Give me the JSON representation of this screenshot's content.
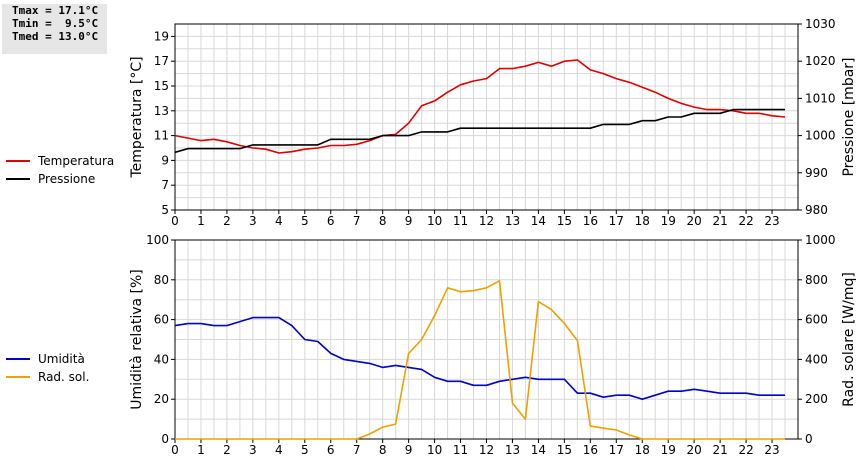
{
  "stats": {
    "tmax": "Tmax = 17.1°C",
    "tmin": "Tmin =  9.5°C",
    "tmed": "Tmed = 13.0°C"
  },
  "colors": {
    "temperatura": "#e00000",
    "pressione": "#000000",
    "umidita": "#0000c8",
    "radsol": "#f0a000",
    "grid": "#d8d8d8"
  },
  "chart_data": [
    {
      "type": "line",
      "xlabel": "",
      "ylabel": "Temperatura [°C]",
      "y2label": "Pressione [mbar]",
      "xlim": [
        0,
        24
      ],
      "ylim": [
        5,
        20
      ],
      "y2lim": [
        980,
        1030
      ],
      "xticks": [
        "0",
        "1",
        "2",
        "3",
        "4",
        "5",
        "6",
        "7",
        "8",
        "9",
        "10",
        "11",
        "12",
        "13",
        "14",
        "15",
        "16",
        "17",
        "18",
        "19",
        "20",
        "21",
        "22",
        "23"
      ],
      "yticks": [
        "5",
        "7",
        "9",
        "11",
        "13",
        "15",
        "17",
        "19"
      ],
      "y2ticks": [
        "980",
        "990",
        "1000",
        "1010",
        "1020",
        "1030"
      ],
      "grid": true,
      "legend": "left",
      "series": [
        {
          "name": "Temperatura",
          "axis": "left",
          "color_key": "temperatura",
          "x": [
            0,
            0.5,
            1,
            1.5,
            2,
            2.5,
            3,
            3.5,
            4,
            4.5,
            5,
            5.5,
            6,
            6.5,
            7,
            7.5,
            8,
            8.5,
            9,
            9.5,
            10,
            10.5,
            11,
            11.5,
            12,
            12.5,
            13,
            13.5,
            14,
            14.5,
            15,
            15.5,
            16,
            16.5,
            17,
            17.5,
            18,
            18.5,
            19,
            19.5,
            20,
            20.5,
            21,
            21.5,
            22,
            22.5,
            23,
            23.5
          ],
          "y": [
            11,
            10.8,
            10.6,
            10.7,
            10.5,
            10.2,
            10,
            9.9,
            9.6,
            9.7,
            9.9,
            10,
            10.2,
            10.2,
            10.3,
            10.6,
            11,
            11.1,
            12,
            13.4,
            13.8,
            14.5,
            15.1,
            15.4,
            15.6,
            16.4,
            16.4,
            16.6,
            16.9,
            16.6,
            17,
            17.1,
            16.3,
            16,
            15.6,
            15.3,
            14.9,
            14.5,
            14,
            13.6,
            13.3,
            13.1,
            13.1,
            13,
            12.8,
            12.8,
            12.6,
            12.5
          ]
        },
        {
          "name": "Pressione",
          "axis": "right",
          "color_key": "pressione",
          "x": [
            0,
            0.5,
            1,
            1.5,
            2,
            2.5,
            3,
            3.5,
            4,
            4.5,
            5,
            5.5,
            6,
            6.5,
            7,
            7.5,
            8,
            8.5,
            9,
            9.5,
            10,
            10.5,
            11,
            11.5,
            12,
            12.5,
            13,
            13.5,
            14,
            14.5,
            15,
            15.5,
            16,
            16.5,
            17,
            17.5,
            18,
            18.5,
            19,
            19.5,
            20,
            20.5,
            21,
            21.5,
            22,
            22.5,
            23,
            23.5
          ],
          "y": [
            995.5,
            996.5,
            996.5,
            996.5,
            996.5,
            996.5,
            997.5,
            997.5,
            997.5,
            997.5,
            997.5,
            997.5,
            999,
            999,
            999,
            999,
            1000,
            1000,
            1000,
            1001,
            1001,
            1001,
            1002,
            1002,
            1002,
            1002,
            1002,
            1002,
            1002,
            1002,
            1002,
            1002,
            1002,
            1003,
            1003,
            1003,
            1004,
            1004,
            1005,
            1005,
            1006,
            1006,
            1006,
            1007,
            1007,
            1007,
            1007,
            1007
          ]
        }
      ]
    },
    {
      "type": "line",
      "xlabel": "",
      "ylabel": "Umidità relativa [%]",
      "y2label": "Rad. solare [W/mq]",
      "xlim": [
        0,
        24
      ],
      "ylim": [
        0,
        100
      ],
      "y2lim": [
        0,
        1000
      ],
      "xticks": [
        "0",
        "1",
        "2",
        "3",
        "4",
        "5",
        "6",
        "7",
        "8",
        "9",
        "10",
        "11",
        "12",
        "13",
        "14",
        "15",
        "16",
        "17",
        "18",
        "19",
        "20",
        "21",
        "22",
        "23"
      ],
      "yticks": [
        "0",
        "20",
        "40",
        "60",
        "80",
        "100"
      ],
      "y2ticks": [
        "0",
        "200",
        "400",
        "600",
        "800",
        "1000"
      ],
      "grid": true,
      "legend": "left",
      "series": [
        {
          "name": "Umidità",
          "axis": "left",
          "color_key": "umidita",
          "x": [
            0,
            0.5,
            1,
            1.5,
            2,
            2.5,
            3,
            3.5,
            4,
            4.5,
            5,
            5.5,
            6,
            6.5,
            7,
            7.5,
            8,
            8.5,
            9,
            9.5,
            10,
            10.5,
            11,
            11.5,
            12,
            12.5,
            13,
            13.5,
            14,
            14.5,
            15,
            15.5,
            16,
            16.5,
            17,
            17.5,
            18,
            18.5,
            19,
            19.5,
            20,
            20.5,
            21,
            21.5,
            22,
            22.5,
            23,
            23.5
          ],
          "y": [
            57,
            58,
            58,
            57,
            57,
            59,
            61,
            61,
            61,
            57,
            50,
            49,
            43,
            40,
            39,
            38,
            36,
            37,
            36,
            35,
            31,
            29,
            29,
            27,
            27,
            29,
            30,
            31,
            30,
            30,
            30,
            23,
            23,
            21,
            22,
            22,
            20,
            22,
            24,
            24,
            25,
            24,
            23,
            23,
            23,
            22,
            22,
            22
          ]
        },
        {
          "name": "Rad. sol.",
          "axis": "right",
          "color_key": "radsol",
          "x": [
            0,
            1,
            2,
            3,
            4,
            5,
            6,
            7,
            7.5,
            8,
            8.5,
            9,
            9.5,
            10,
            10.5,
            11,
            11.5,
            12,
            12.5,
            13,
            13.5,
            14,
            14.5,
            15,
            15.5,
            16,
            16.5,
            17,
            17.5,
            18,
            19,
            20,
            21,
            22,
            23,
            23.5
          ],
          "y": [
            0,
            0,
            0,
            0,
            0,
            0,
            0,
            0,
            25,
            60,
            75,
            430,
            500,
            620,
            760,
            740,
            745,
            760,
            795,
            180,
            100,
            690,
            650,
            580,
            495,
            65,
            55,
            45,
            20,
            0,
            0,
            0,
            0,
            0,
            0,
            0
          ]
        }
      ]
    }
  ]
}
